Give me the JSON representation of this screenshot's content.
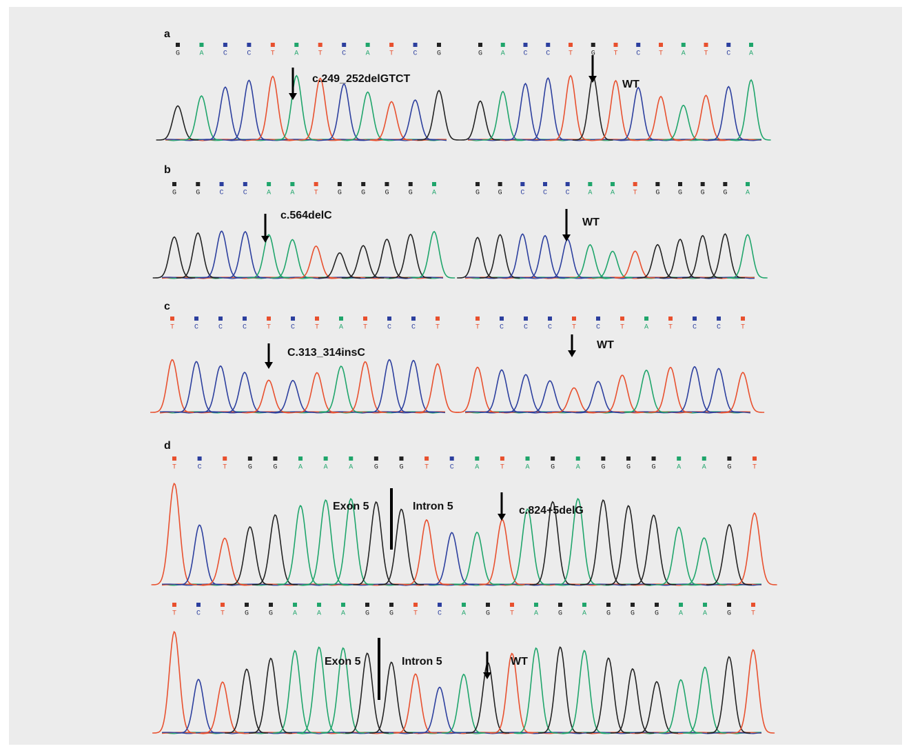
{
  "base_colors": {
    "A": "#1fa56b",
    "C": "#2c3f9e",
    "G": "#222222",
    "T": "#e8502e"
  },
  "panels": [
    {
      "label": "a",
      "traces": [
        {
          "bases": [
            "G",
            "A",
            "C",
            "C",
            "T",
            "A",
            "T",
            "C",
            "A",
            "T",
            "C",
            "G"
          ],
          "annotations": [
            "c.249_252delGTCT"
          ]
        },
        {
          "bases": [
            "G",
            "A",
            "C",
            "C",
            "T",
            "G",
            "T",
            "C",
            "T",
            "A",
            "T",
            "C",
            "A"
          ],
          "annotations": [
            "WT"
          ]
        }
      ]
    },
    {
      "label": "b",
      "traces": [
        {
          "bases": [
            "G",
            "G",
            "C",
            "C",
            "A",
            "A",
            "T",
            "G",
            "G",
            "G",
            "G",
            "A"
          ],
          "annotations": [
            "c.564delC"
          ]
        },
        {
          "bases": [
            "G",
            "G",
            "C",
            "C",
            "C",
            "A",
            "A",
            "T",
            "G",
            "G",
            "G",
            "G",
            "A"
          ],
          "annotations": [
            "WT"
          ]
        }
      ]
    },
    {
      "label": "c",
      "traces": [
        {
          "bases": [
            "T",
            "C",
            "C",
            "C",
            "T",
            "C",
            "T",
            "A",
            "T",
            "C",
            "C",
            "T"
          ],
          "annotations": [
            "C.313_314insC"
          ]
        },
        {
          "bases": [
            "T",
            "C",
            "C",
            "C",
            "T",
            "C",
            "T",
            "A",
            "T",
            "C",
            "C",
            "T"
          ],
          "annotations": [
            "WT"
          ]
        }
      ]
    },
    {
      "label": "d",
      "traces": [
        {
          "bases": [
            "T",
            "C",
            "T",
            "G",
            "G",
            "A",
            "A",
            "A",
            "G",
            "G",
            "T",
            "C",
            "A",
            "T",
            "A",
            "G",
            "A",
            "G",
            "G",
            "G",
            "A",
            "A",
            "G",
            "T"
          ],
          "annotations": [
            "Exon 5",
            "Intron 5",
            "c.824+5delG"
          ]
        },
        {
          "bases": [
            "T",
            "C",
            "T",
            "G",
            "G",
            "A",
            "A",
            "A",
            "G",
            "G",
            "T",
            "C",
            "A",
            "G",
            "T",
            "A",
            "G",
            "A",
            "G",
            "G",
            "G",
            "A",
            "A",
            "G",
            "T"
          ],
          "annotations": [
            "Exon 5",
            "Intron 5",
            "WT"
          ]
        }
      ]
    }
  ]
}
